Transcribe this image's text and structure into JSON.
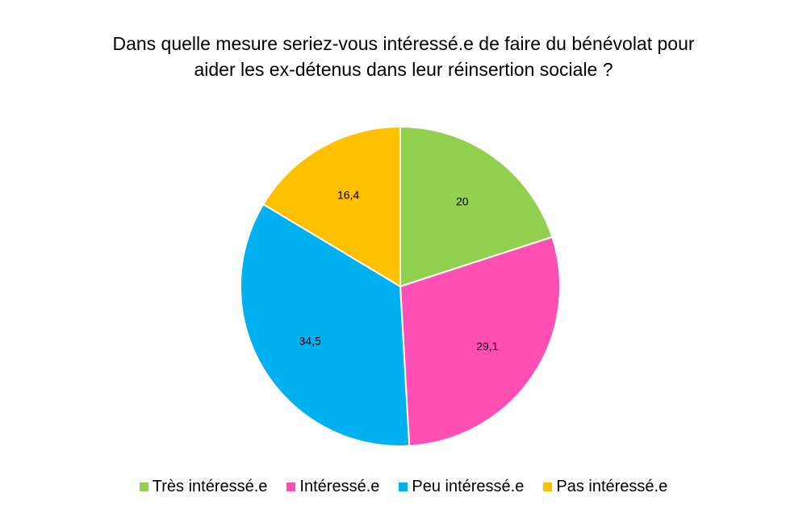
{
  "chart_data": {
    "type": "pie",
    "title_lines": [
      "Dans quelle mesure seriez-vous intéressé.e de faire du bénévolat pour",
      "aider les ex-détenus dans leur réinsertion sociale ?"
    ],
    "categories": [
      "Très intéressé.e",
      "Intéressé.e",
      "Peu intéressé.e",
      "Pas intéressé.e"
    ],
    "values": [
      20,
      29.1,
      34.5,
      16.4
    ],
    "data_labels": [
      "20",
      "29,1",
      "34,5",
      "16,4"
    ],
    "colors": [
      "#92d050",
      "#ff4fb4",
      "#00b0f0",
      "#ffc000"
    ],
    "start_angle_deg": 0,
    "direction": "clockwise",
    "legend_position": "bottom"
  }
}
